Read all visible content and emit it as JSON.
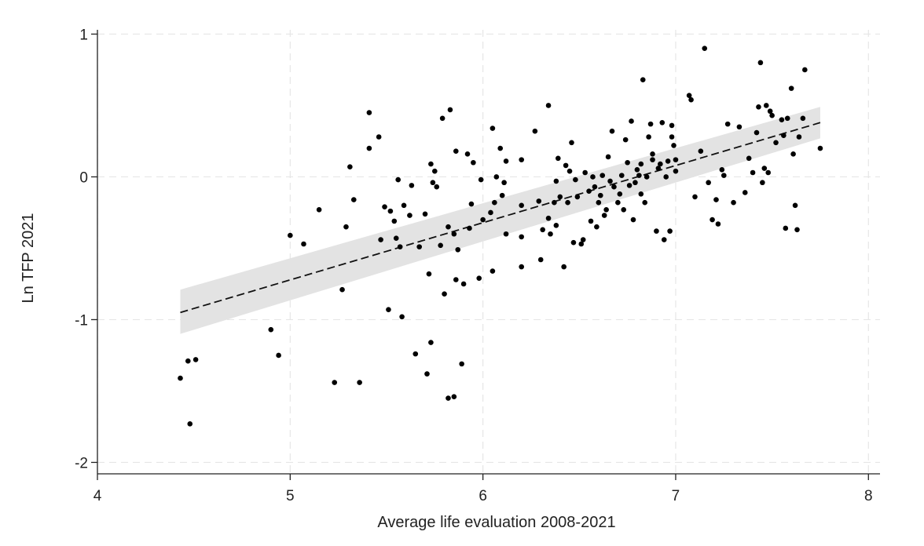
{
  "chart_data": {
    "type": "scatter",
    "title": "",
    "xlabel": "Average life evaluation 2008-2021",
    "ylabel": "Ln TFP 2021",
    "xlim": [
      4,
      8.06
    ],
    "ylim": [
      -2.08,
      1.03
    ],
    "xticks": [
      4,
      5,
      6,
      7,
      8
    ],
    "yticks": [
      1,
      0,
      -1,
      -2
    ],
    "xtick_labels": [
      "4",
      "5",
      "6",
      "7",
      "8"
    ],
    "ytick_labels": [
      "1",
      "0",
      "-1",
      "-2"
    ],
    "grid": true,
    "fit": {
      "kind": "linear",
      "style": "dashed",
      "x_range": [
        4.43,
        7.75
      ],
      "start": [
        4.43,
        -0.95
      ],
      "end": [
        7.75,
        0.38
      ],
      "ci_start": [
        -1.1,
        -0.79
      ],
      "ci_end": [
        0.27,
        0.49
      ],
      "ci_color": "#e3e3e3"
    },
    "point_color": "#000000",
    "points": [
      [
        4.43,
        -1.41
      ],
      [
        4.47,
        -1.29
      ],
      [
        4.48,
        -1.73
      ],
      [
        4.51,
        -1.28
      ],
      [
        4.9,
        -1.07
      ],
      [
        4.94,
        -1.25
      ],
      [
        5.0,
        -0.41
      ],
      [
        5.07,
        -0.47
      ],
      [
        5.15,
        -0.23
      ],
      [
        5.23,
        -1.44
      ],
      [
        5.27,
        -0.79
      ],
      [
        5.29,
        -0.35
      ],
      [
        5.31,
        0.07
      ],
      [
        5.33,
        -0.16
      ],
      [
        5.36,
        -1.44
      ],
      [
        5.41,
        0.45
      ],
      [
        5.41,
        0.2
      ],
      [
        5.46,
        0.28
      ],
      [
        5.47,
        -0.44
      ],
      [
        5.49,
        -0.21
      ],
      [
        5.51,
        -0.93
      ],
      [
        5.52,
        -0.24
      ],
      [
        5.54,
        -0.31
      ],
      [
        5.55,
        -0.43
      ],
      [
        5.56,
        -0.02
      ],
      [
        5.57,
        -0.49
      ],
      [
        5.58,
        -0.98
      ],
      [
        5.59,
        -0.2
      ],
      [
        5.62,
        -0.27
      ],
      [
        5.63,
        -0.06
      ],
      [
        5.65,
        -1.24
      ],
      [
        5.67,
        -0.49
      ],
      [
        5.7,
        -0.26
      ],
      [
        5.71,
        -1.38
      ],
      [
        5.72,
        -0.68
      ],
      [
        5.73,
        0.09
      ],
      [
        5.73,
        -1.16
      ],
      [
        5.74,
        -0.04
      ],
      [
        5.75,
        0.04
      ],
      [
        5.76,
        -0.07
      ],
      [
        5.78,
        -0.48
      ],
      [
        5.79,
        0.41
      ],
      [
        5.8,
        -0.82
      ],
      [
        5.82,
        -0.35
      ],
      [
        5.82,
        -1.55
      ],
      [
        5.83,
        0.47
      ],
      [
        5.85,
        -0.4
      ],
      [
        5.85,
        -1.54
      ],
      [
        5.86,
        -0.72
      ],
      [
        5.86,
        0.18
      ],
      [
        5.87,
        -0.51
      ],
      [
        5.89,
        -1.31
      ],
      [
        5.9,
        -0.75
      ],
      [
        5.92,
        0.16
      ],
      [
        5.93,
        -0.36
      ],
      [
        5.94,
        -0.19
      ],
      [
        5.95,
        0.1
      ],
      [
        5.98,
        -0.71
      ],
      [
        5.99,
        -0.02
      ],
      [
        6.0,
        -0.3
      ],
      [
        6.04,
        -0.25
      ],
      [
        6.05,
        0.34
      ],
      [
        6.05,
        -0.66
      ],
      [
        6.06,
        -0.18
      ],
      [
        6.07,
        0.0
      ],
      [
        6.09,
        0.2
      ],
      [
        6.1,
        -0.13
      ],
      [
        6.11,
        -0.04
      ],
      [
        6.12,
        0.11
      ],
      [
        6.12,
        -0.4
      ],
      [
        6.2,
        -0.2
      ],
      [
        6.2,
        0.12
      ],
      [
        6.2,
        -0.42
      ],
      [
        6.2,
        -0.63
      ],
      [
        6.27,
        0.32
      ],
      [
        6.29,
        -0.17
      ],
      [
        6.3,
        -0.58
      ],
      [
        6.31,
        -0.37
      ],
      [
        6.34,
        0.5
      ],
      [
        6.34,
        -0.29
      ],
      [
        6.35,
        -0.4
      ],
      [
        6.37,
        -0.18
      ],
      [
        6.38,
        -0.34
      ],
      [
        6.38,
        -0.03
      ],
      [
        6.39,
        0.13
      ],
      [
        6.4,
        -0.14
      ],
      [
        6.42,
        -0.63
      ],
      [
        6.43,
        0.08
      ],
      [
        6.44,
        -0.18
      ],
      [
        6.45,
        0.04
      ],
      [
        6.46,
        0.24
      ],
      [
        6.47,
        -0.46
      ],
      [
        6.48,
        -0.02
      ],
      [
        6.49,
        -0.14
      ],
      [
        6.51,
        -0.47
      ],
      [
        6.52,
        -0.44
      ],
      [
        6.53,
        0.03
      ],
      [
        6.55,
        -0.1
      ],
      [
        6.56,
        -0.31
      ],
      [
        6.57,
        0.0
      ],
      [
        6.58,
        -0.07
      ],
      [
        6.59,
        -0.35
      ],
      [
        6.6,
        -0.18
      ],
      [
        6.61,
        -0.13
      ],
      [
        6.62,
        0.01
      ],
      [
        6.63,
        -0.27
      ],
      [
        6.64,
        -0.23
      ],
      [
        6.65,
        0.14
      ],
      [
        6.66,
        -0.03
      ],
      [
        6.67,
        0.32
      ],
      [
        6.68,
        -0.07
      ],
      [
        6.7,
        -0.18
      ],
      [
        6.71,
        -0.12
      ],
      [
        6.72,
        0.01
      ],
      [
        6.73,
        -0.23
      ],
      [
        6.74,
        0.26
      ],
      [
        6.75,
        0.1
      ],
      [
        6.76,
        -0.06
      ],
      [
        6.77,
        0.39
      ],
      [
        6.78,
        -0.3
      ],
      [
        6.79,
        -0.04
      ],
      [
        6.8,
        0.05
      ],
      [
        6.81,
        0.01
      ],
      [
        6.82,
        -0.12
      ],
      [
        6.82,
        0.09
      ],
      [
        6.83,
        0.68
      ],
      [
        6.84,
        -0.18
      ],
      [
        6.85,
        0.0
      ],
      [
        6.86,
        0.28
      ],
      [
        6.87,
        0.37
      ],
      [
        6.88,
        0.16
      ],
      [
        6.88,
        0.12
      ],
      [
        6.9,
        -0.38
      ],
      [
        6.91,
        0.06
      ],
      [
        6.92,
        0.09
      ],
      [
        6.93,
        0.38
      ],
      [
        6.94,
        -0.44
      ],
      [
        6.95,
        0.0
      ],
      [
        6.96,
        0.11
      ],
      [
        6.97,
        -0.38
      ],
      [
        6.98,
        0.36
      ],
      [
        6.98,
        0.28
      ],
      [
        6.99,
        0.22
      ],
      [
        7.0,
        0.12
      ],
      [
        7.0,
        0.04
      ],
      [
        7.07,
        0.57
      ],
      [
        7.08,
        0.54
      ],
      [
        7.1,
        -0.14
      ],
      [
        7.13,
        0.18
      ],
      [
        7.15,
        0.9
      ],
      [
        7.17,
        -0.04
      ],
      [
        7.19,
        -0.3
      ],
      [
        7.21,
        -0.16
      ],
      [
        7.22,
        -0.33
      ],
      [
        7.24,
        0.05
      ],
      [
        7.25,
        0.01
      ],
      [
        7.27,
        0.37
      ],
      [
        7.3,
        -0.18
      ],
      [
        7.33,
        0.35
      ],
      [
        7.36,
        -0.11
      ],
      [
        7.38,
        0.13
      ],
      [
        7.4,
        0.03
      ],
      [
        7.42,
        0.31
      ],
      [
        7.43,
        0.49
      ],
      [
        7.44,
        0.8
      ],
      [
        7.45,
        -0.04
      ],
      [
        7.46,
        0.06
      ],
      [
        7.47,
        0.5
      ],
      [
        7.48,
        0.03
      ],
      [
        7.49,
        0.46
      ],
      [
        7.5,
        0.43
      ],
      [
        7.52,
        0.24
      ],
      [
        7.55,
        0.4
      ],
      [
        7.56,
        0.29
      ],
      [
        7.57,
        -0.36
      ],
      [
        7.58,
        0.41
      ],
      [
        7.6,
        0.62
      ],
      [
        7.61,
        0.16
      ],
      [
        7.62,
        -0.2
      ],
      [
        7.63,
        -0.37
      ],
      [
        7.64,
        0.28
      ],
      [
        7.66,
        0.41
      ],
      [
        7.67,
        0.75
      ],
      [
        7.75,
        0.2
      ]
    ]
  }
}
